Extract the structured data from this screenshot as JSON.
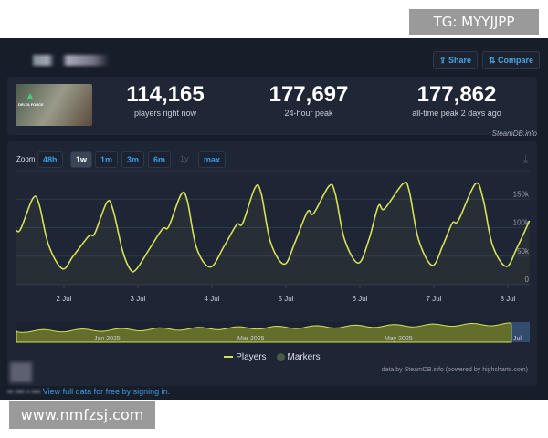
{
  "watermarks": {
    "top": "TG: MYYJJPP",
    "bottom": "www.nmfzsj.com"
  },
  "header": {
    "share_label": "Share",
    "compare_label": "Compare",
    "share_icon": "share-icon",
    "compare_icon": "compare-icon"
  },
  "game": {
    "name": "DELTA FORCE"
  },
  "stats": [
    {
      "value": "114,165",
      "label": "players right now"
    },
    {
      "value": "177,697",
      "label": "24-hour peak"
    },
    {
      "value": "177,862",
      "label": "all-time peak 2 days ago"
    }
  ],
  "credit": "SteamDB.info",
  "zoom": {
    "label": "Zoom",
    "options": [
      "48h",
      "1w",
      "1m",
      "3m",
      "6m",
      "1y",
      "max"
    ],
    "active": "1w",
    "disabled": [
      "1y"
    ]
  },
  "legend": {
    "players": "Players",
    "markers": "Markers"
  },
  "attribution": "data by SteamDB.info (powered by highcharts.com)",
  "footer": {
    "link": "View full data for free by signing in."
  },
  "colors": {
    "line": "#d4e157",
    "background": "#171d29",
    "accent": "#3b9be0"
  },
  "chart_data": {
    "type": "line",
    "series": [
      {
        "name": "Players",
        "points": [
          [
            "1 Jul 08:30",
            95000
          ],
          [
            "1 Jul 10:00",
            98000
          ],
          [
            "1 Jul 14:00",
            152000
          ],
          [
            "1 Jul 16:00",
            140000
          ],
          [
            "1 Jul 19:00",
            70000
          ],
          [
            "1 Jul 23:30",
            28000
          ],
          [
            "2 Jul 03:00",
            50000
          ],
          [
            "2 Jul 08:00",
            85000
          ],
          [
            "2 Jul 10:00",
            90000
          ],
          [
            "2 Jul 14:00",
            145000
          ],
          [
            "2 Jul 16:00",
            130000
          ],
          [
            "2 Jul 19:00",
            60000
          ],
          [
            "2 Jul 21:30",
            27000
          ],
          [
            "2 Jul 23:30",
            27000
          ],
          [
            "3 Jul 04:00",
            65000
          ],
          [
            "3 Jul 08:00",
            98000
          ],
          [
            "3 Jul 10:00",
            102000
          ],
          [
            "3 Jul 14:00",
            158000
          ],
          [
            "3 Jul 16:00",
            148000
          ],
          [
            "3 Jul 19:00",
            65000
          ],
          [
            "3 Jul 23:30",
            31000
          ],
          [
            "4 Jul 04:00",
            68000
          ],
          [
            "4 Jul 08:00",
            105000
          ],
          [
            "4 Jul 10:00",
            108000
          ],
          [
            "4 Jul 14:00",
            170000
          ],
          [
            "4 Jul 16:00",
            160000
          ],
          [
            "4 Jul 19:00",
            75000
          ],
          [
            "4 Jul 23:30",
            36000
          ],
          [
            "5 Jul 03:00",
            75000
          ],
          [
            "5 Jul 07:00",
            128000
          ],
          [
            "5 Jul 09:00",
            125000
          ],
          [
            "5 Jul 14:00",
            173000
          ],
          [
            "5 Jul 16:00",
            160000
          ],
          [
            "5 Jul 19:00",
            80000
          ],
          [
            "5 Jul 23:30",
            38000
          ],
          [
            "6 Jul 03:00",
            80000
          ],
          [
            "6 Jul 06:00",
            138000
          ],
          [
            "6 Jul 08:00",
            133000
          ],
          [
            "6 Jul 14:00",
            177000
          ],
          [
            "6 Jul 16:00",
            165000
          ],
          [
            "6 Jul 19:00",
            80000
          ],
          [
            "6 Jul 23:30",
            34000
          ],
          [
            "7 Jul 03:00",
            70000
          ],
          [
            "7 Jul 06:00",
            108000
          ],
          [
            "7 Jul 08:00",
            113000
          ],
          [
            "7 Jul 13:30",
            177000
          ],
          [
            "7 Jul 16:00",
            150000
          ],
          [
            "7 Jul 19:00",
            70000
          ],
          [
            "7 Jul 23:30",
            32000
          ],
          [
            "8 Jul 03:00",
            65000
          ],
          [
            "8 Jul 07:00",
            112000
          ]
        ]
      }
    ],
    "x_ticks": [
      "2 Jul",
      "3 Jul",
      "4 Jul",
      "5 Jul",
      "6 Jul",
      "7 Jul",
      "8 Jul"
    ],
    "y_ticks": [
      "0",
      "50k",
      "100k",
      "150k"
    ],
    "ylim": [
      0,
      200000
    ],
    "grid": true,
    "navigator": {
      "labels": [
        "Jan 2025",
        "Mar 2025",
        "May 2025",
        "Jul"
      ]
    }
  }
}
